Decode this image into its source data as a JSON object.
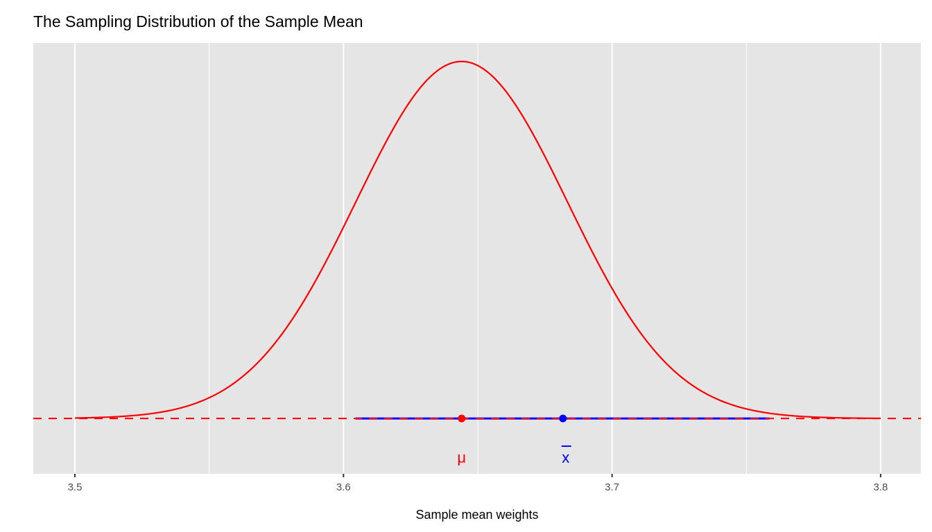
{
  "chart_data": {
    "type": "line",
    "title": "The Sampling Distribution of the Sample Mean",
    "xlabel": "Sample mean weights",
    "ylabel": "",
    "xlim": [
      3.4845,
      3.815
    ],
    "ylim": [
      -1.57,
      10.65
    ],
    "x_ticks": [
      3.5,
      3.6,
      3.7,
      3.8
    ],
    "x_tick_labels": [
      "3.5",
      "3.6",
      "3.7",
      "3.8"
    ],
    "x_minor_ticks": [
      3.55,
      3.65,
      3.75
    ],
    "y_ticks_shown": false,
    "grid": true,
    "background": "#E5E5E5",
    "density_curve": {
      "distribution": "normal",
      "mean": 3.644,
      "sd": 0.0394,
      "x_range": [
        3.5,
        3.8
      ],
      "color": "#FF0000"
    },
    "baseline": {
      "y": 0,
      "style": "dashed",
      "color": "#FF0000"
    },
    "interval": {
      "from": 3.6045,
      "to": 3.7586,
      "y": 0,
      "color": "#0000FF"
    },
    "points": [
      {
        "label": "μ",
        "x": 3.644,
        "y": 0,
        "color": "#FF0000",
        "label_y": -1.1
      },
      {
        "label": "x",
        "overline": true,
        "x": 3.6817,
        "y": 0,
        "color": "#0000FF",
        "label_y": -1.1
      }
    ]
  }
}
